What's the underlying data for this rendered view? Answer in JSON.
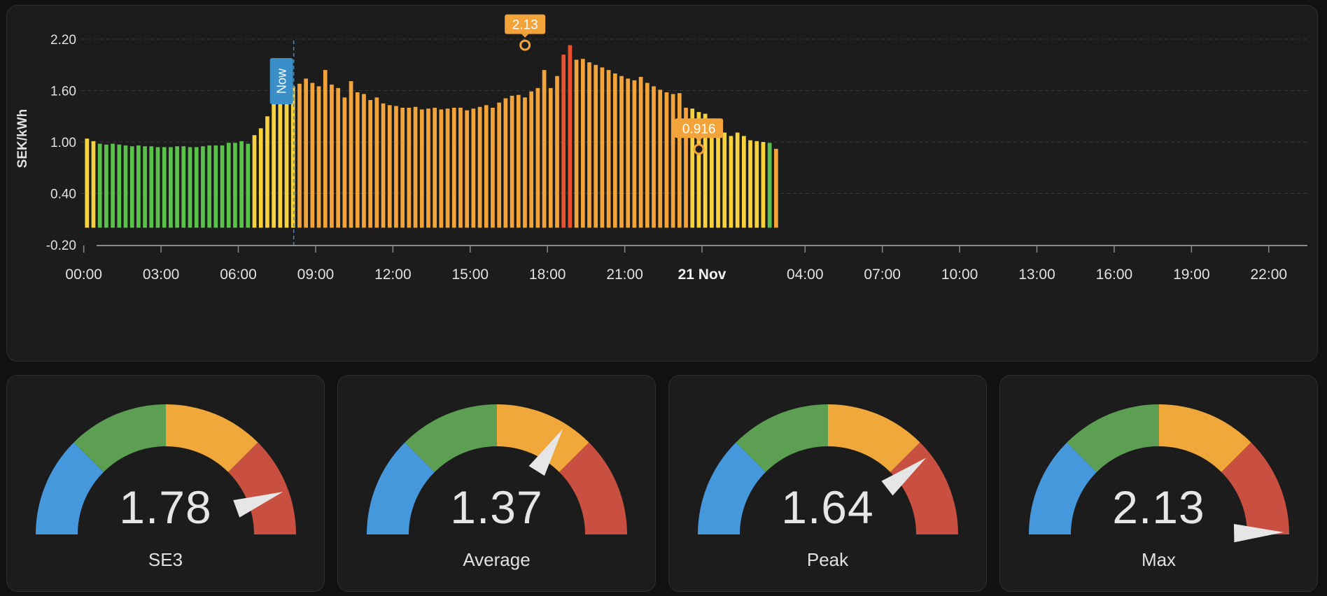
{
  "colors": {
    "green": "#5ac14b",
    "yellow": "#f7d23d",
    "orange": "#f2a43a",
    "red": "#e8502e",
    "grid": "#3a3a3a",
    "now_marker": "#3a8fc9",
    "gauge_blue": "#4598db",
    "gauge_green": "#5c9e52",
    "gauge_orange": "#f0a83a",
    "gauge_red": "#c95040",
    "needle": "#e6e6e6"
  },
  "chart_data": {
    "type": "bar",
    "ylabel": "SEK/kWh",
    "ylim": [
      -0.2,
      2.2
    ],
    "yticks": [
      "2.20",
      "1.60",
      "1.00",
      "0.40",
      "-0.20"
    ],
    "grid": true,
    "xlim_hours": [
      -0.1,
      47.5
    ],
    "xticks": [
      {
        "label": "00:00",
        "hour": 0
      },
      {
        "label": "03:00",
        "hour": 3
      },
      {
        "label": "06:00",
        "hour": 6
      },
      {
        "label": "09:00",
        "hour": 9
      },
      {
        "label": "12:00",
        "hour": 12
      },
      {
        "label": "15:00",
        "hour": 15
      },
      {
        "label": "18:00",
        "hour": 18
      },
      {
        "label": "21:00",
        "hour": 21
      },
      {
        "label": "21 Nov",
        "hour": 24,
        "bold": true
      },
      {
        "label": "04:00",
        "hour": 28
      },
      {
        "label": "07:00",
        "hour": 31
      },
      {
        "label": "10:00",
        "hour": 34
      },
      {
        "label": "13:00",
        "hour": 37
      },
      {
        "label": "16:00",
        "hour": 40
      },
      {
        "label": "19:00",
        "hour": 43
      },
      {
        "label": "22:00",
        "hour": 46
      }
    ],
    "interval_hours": 0.25,
    "values": [
      1.04,
      1.01,
      0.98,
      0.97,
      0.98,
      0.97,
      0.96,
      0.95,
      0.96,
      0.95,
      0.95,
      0.94,
      0.94,
      0.94,
      0.95,
      0.95,
      0.94,
      0.94,
      0.95,
      0.96,
      0.96,
      0.96,
      0.99,
      0.99,
      1.01,
      0.98,
      1.08,
      1.16,
      1.3,
      1.54,
      1.53,
      1.61,
      1.65,
      1.68,
      1.74,
      1.69,
      1.65,
      1.84,
      1.67,
      1.63,
      1.52,
      1.71,
      1.58,
      1.56,
      1.49,
      1.52,
      1.45,
      1.43,
      1.42,
      1.4,
      1.4,
      1.41,
      1.38,
      1.39,
      1.4,
      1.38,
      1.39,
      1.4,
      1.4,
      1.37,
      1.39,
      1.41,
      1.43,
      1.4,
      1.46,
      1.51,
      1.54,
      1.55,
      1.52,
      1.59,
      1.63,
      1.84,
      1.63,
      1.77,
      2.02,
      2.13,
      1.96,
      1.97,
      1.93,
      1.9,
      1.87,
      1.84,
      1.8,
      1.77,
      1.74,
      1.72,
      1.76,
      1.69,
      1.65,
      1.61,
      1.58,
      1.56,
      1.57,
      1.4,
      1.39,
      1.35,
      1.33,
      1.21,
      1.15,
      1.11,
      1.07,
      1.11,
      1.07,
      1.02,
      1.01,
      1.0,
      0.99,
      0.92
    ],
    "bar_colors": [
      "yellow",
      "yellow",
      "green",
      "green",
      "green",
      "green",
      "green",
      "green",
      "green",
      "green",
      "green",
      "green",
      "green",
      "green",
      "green",
      "green",
      "green",
      "green",
      "green",
      "green",
      "green",
      "green",
      "green",
      "green",
      "green",
      "green",
      "yellow",
      "yellow",
      "yellow",
      "yellow",
      "yellow",
      "yellow",
      "yellow",
      "orange",
      "orange",
      "orange",
      "orange",
      "orange",
      "orange",
      "orange",
      "orange",
      "orange",
      "orange",
      "orange",
      "orange",
      "orange",
      "orange",
      "orange",
      "orange",
      "orange",
      "orange",
      "orange",
      "orange",
      "orange",
      "orange",
      "orange",
      "orange",
      "orange",
      "orange",
      "orange",
      "orange",
      "orange",
      "orange",
      "orange",
      "orange",
      "orange",
      "orange",
      "orange",
      "orange",
      "orange",
      "orange",
      "orange",
      "orange",
      "orange",
      "red",
      "red",
      "orange",
      "orange",
      "orange",
      "orange",
      "orange",
      "orange",
      "orange",
      "orange",
      "orange",
      "orange",
      "orange",
      "orange",
      "orange",
      "orange",
      "orange",
      "orange",
      "orange",
      "orange",
      "yellow",
      "yellow",
      "yellow",
      "yellow",
      "yellow",
      "yellow",
      "yellow",
      "yellow",
      "yellow",
      "yellow",
      "yellow",
      "yellow",
      "green"
    ],
    "now_marker": {
      "label": "Now",
      "hour": 8.15
    },
    "annotations": [
      {
        "label": "2.13",
        "hour": 17.13,
        "value": 2.13
      },
      {
        "label": "0.916",
        "hour": 23.88,
        "value": 0.916
      }
    ]
  },
  "gauges": [
    {
      "id": "se3",
      "label": "SE3",
      "value": 1.78,
      "display": "1.78",
      "needle_angle_deg": 20
    },
    {
      "id": "average",
      "label": "Average",
      "value": 1.37,
      "display": "1.37",
      "needle_angle_deg": 58
    },
    {
      "id": "peak",
      "label": "Peak",
      "value": 1.64,
      "display": "1.64",
      "needle_angle_deg": 38
    },
    {
      "id": "max",
      "label": "Max",
      "value": 2.13,
      "display": "2.13",
      "needle_angle_deg": 1
    }
  ]
}
